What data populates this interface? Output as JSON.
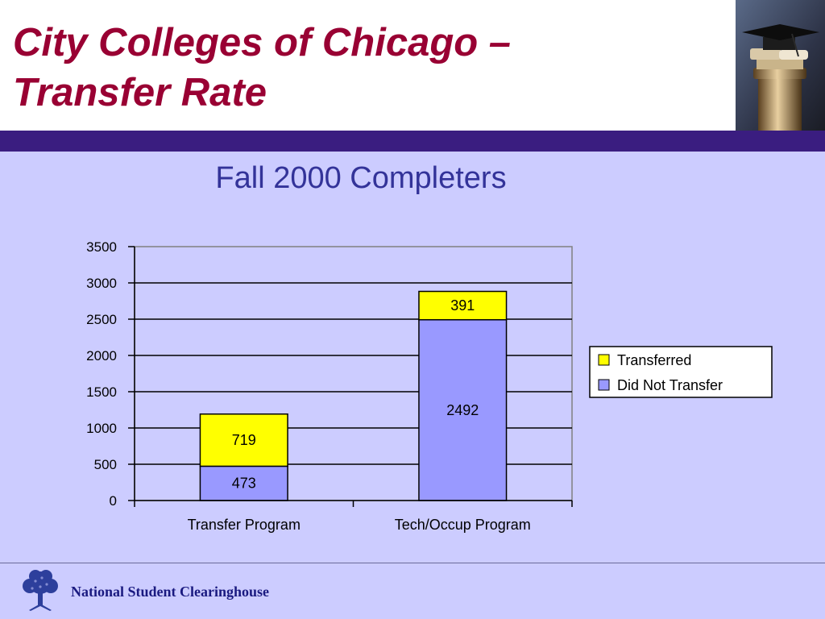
{
  "slide": {
    "title_lines": [
      "City Colleges of Chicago –",
      "Transfer Rate"
    ],
    "footer_text": "National Student Clearinghouse",
    "colors": {
      "title": "#990033",
      "band": "#3a1d80",
      "background": "#ccccff",
      "footer_text": "#1a1a80"
    },
    "decor": {
      "header_image": "graduation-cap-on-column",
      "footer_logo": "tree-logo"
    }
  },
  "chart_data": {
    "type": "bar",
    "stacked": true,
    "title": "Fall 2000 Completers",
    "categories": [
      "Transfer Program",
      "Tech/Occup Program"
    ],
    "series": [
      {
        "name": "Did Not Transfer",
        "values": [
          473,
          2492
        ],
        "color": "#9999ff"
      },
      {
        "name": "Transferred",
        "values": [
          719,
          391
        ],
        "color": "#ffff00"
      }
    ],
    "data_labels": true,
    "y_ticks": [
      "0",
      "500",
      "1000",
      "1500",
      "2000",
      "2500",
      "3000",
      "3500"
    ],
    "ylim": [
      0,
      3500
    ],
    "grid": true,
    "legend": {
      "position": "right",
      "order": [
        "Transferred",
        "Did Not Transfer"
      ]
    },
    "xlabel": "",
    "ylabel": ""
  }
}
